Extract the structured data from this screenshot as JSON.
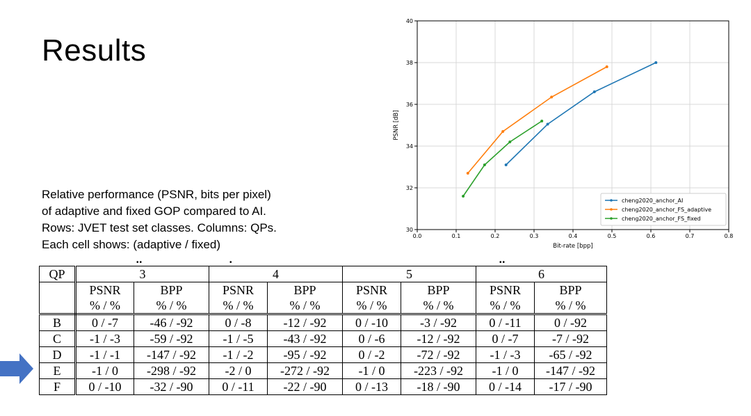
{
  "slide": {
    "title": "Results",
    "description": [
      "Relative performance (PSNR, bits per pixel)",
      "of adaptive and fixed GOP compared to AI.",
      "Rows: JVET test set classes. Columns: QPs.",
      "Each cell shows: (adaptive / fixed)"
    ]
  },
  "table": {
    "qp_label": "QP",
    "qps": [
      "3",
      "4",
      "5",
      "6"
    ],
    "metric_names": [
      "PSNR",
      "BPP"
    ],
    "unit_label": "% / %",
    "rows": [
      {
        "cls": "B",
        "cells": [
          "0 / -7",
          "-46 / -92",
          "0 / -8",
          "-12 / -92",
          "0 / -10",
          "-3 / -92",
          "0 / -11",
          "0 / -92"
        ]
      },
      {
        "cls": "C",
        "cells": [
          "-1 / -3",
          "-59 / -92",
          "-1 / -5",
          "-43 / -92",
          "0 / -6",
          "-12 / -92",
          "0 / -7",
          "-7 / -92"
        ]
      },
      {
        "cls": "D",
        "cells": [
          "-1 / -1",
          "-147 / -92",
          "-1 / -2",
          "-95 / -92",
          "0 / -2",
          "-72 / -92",
          "-1 / -3",
          "-65 / -92"
        ]
      },
      {
        "cls": "E",
        "cells": [
          "-1 / 0",
          "-298 / -92",
          "-2 / 0",
          "-272 / -92",
          "-1 / 0",
          "-223 / -92",
          "-1 / 0",
          "-147 / -92"
        ]
      },
      {
        "cls": "F",
        "cells": [
          "0 / -10",
          "-32 / -90",
          "0 / -11",
          "-22 / -90",
          "0 / -13",
          "-18 / -90",
          "0 / -14",
          "-17 / -90"
        ]
      }
    ],
    "highlighted_row": "D"
  },
  "chart_data": {
    "type": "line",
    "title": "",
    "xlabel": "Bit-rate [bpp]",
    "ylabel": "PSNR [dB]",
    "xlim": [
      0.0,
      0.8
    ],
    "ylim": [
      30,
      40
    ],
    "xticks": [
      "0.0",
      "0.1",
      "0.2",
      "0.3",
      "0.4",
      "0.5",
      "0.6",
      "0.7",
      "0.8"
    ],
    "yticks": [
      "30",
      "32",
      "34",
      "36",
      "38",
      "40"
    ],
    "grid": true,
    "legend_position": "bottom-right",
    "series": [
      {
        "name": "cheng2020_anchor_AI",
        "color": "#1f77b4",
        "x": [
          0.228,
          0.335,
          0.455,
          0.613
        ],
        "y": [
          33.1,
          35.05,
          36.6,
          38.0
        ]
      },
      {
        "name": "cheng2020_anchor_FS_adaptive",
        "color": "#ff7f0e",
        "x": [
          0.13,
          0.22,
          0.345,
          0.487
        ],
        "y": [
          32.7,
          34.7,
          36.35,
          37.8
        ]
      },
      {
        "name": "cheng2020_anchor_FS_fixed",
        "color": "#2ca02c",
        "x": [
          0.118,
          0.173,
          0.238,
          0.32
        ],
        "y": [
          31.6,
          33.1,
          34.2,
          35.2
        ]
      }
    ]
  },
  "colors": {
    "arrow": "#4472c4"
  }
}
